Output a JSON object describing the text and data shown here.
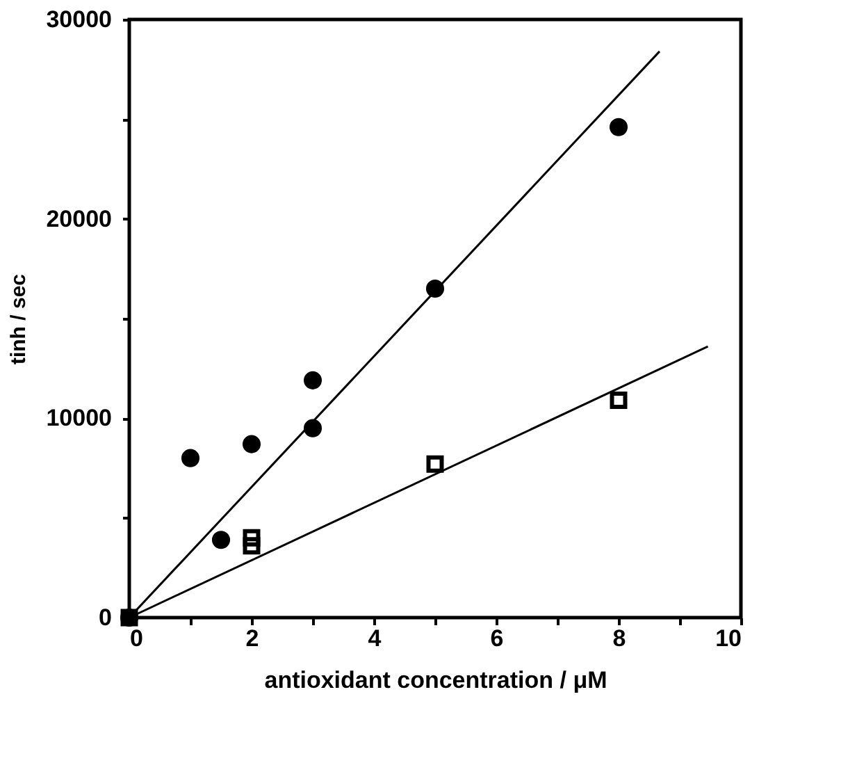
{
  "chart_data": {
    "type": "scatter",
    "xlabel": "antioxidant concentration / μM",
    "ylabel": "tinh / sec",
    "xlim": [
      0,
      10
    ],
    "ylim": [
      0,
      30000
    ],
    "xticks": [
      0,
      {
        "value": 1,
        "label": null
      },
      2,
      {
        "value": 3,
        "label": null
      },
      4,
      {
        "value": 5,
        "label": null
      },
      6,
      {
        "value": 7,
        "label": null
      },
      8,
      {
        "value": 9,
        "label": null
      },
      10
    ],
    "yticks": [
      0,
      {
        "value": 5000,
        "label": null
      },
      10000,
      {
        "value": 15000,
        "label": null
      },
      20000,
      {
        "value": 25000,
        "label": null
      },
      30000
    ],
    "grid": false,
    "series": [
      {
        "marker": "circle",
        "color": "#000000",
        "x": [
          0,
          1,
          1.5,
          2,
          3,
          3,
          5,
          8
        ],
        "values": [
          0,
          8000,
          3900,
          8700,
          11900,
          9500,
          16500,
          24600
        ]
      },
      {
        "marker": "square",
        "color": "#000000",
        "x": [
          0,
          2,
          2,
          5,
          8
        ],
        "values": [
          0,
          4000,
          3600,
          7700,
          10900
        ]
      },
      {
        "type": "line",
        "line_style": "solid",
        "color": "#000000",
        "x": [
          0,
          8.67
        ],
        "values": [
          0,
          28400
        ]
      },
      {
        "type": "line",
        "line_style": "solid",
        "color": "#000000",
        "x": [
          0,
          9.46
        ],
        "values": [
          0,
          13600
        ]
      }
    ]
  }
}
